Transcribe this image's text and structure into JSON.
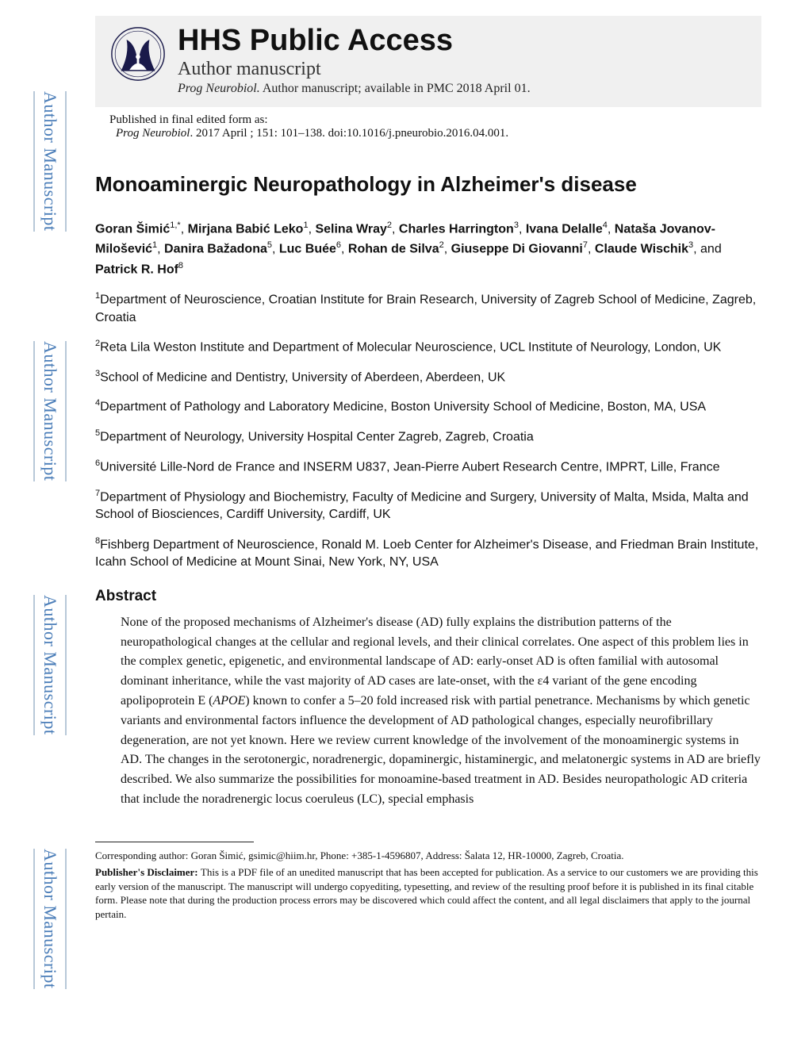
{
  "watermark_text": "Author Manuscript",
  "header": {
    "title": "HHS Public Access",
    "subtitle": "Author manuscript",
    "journal_italic": "Prog Neurobiol.",
    "journal_rest": " Author manuscript; available in PMC 2018 April 01."
  },
  "pub": {
    "line1": "Published in final edited form as:",
    "line2_italic": "Prog Neurobiol",
    "line2_rest": ". 2017 April ; 151: 101–138. doi:10.1016/j.pneurobio.2016.04.001."
  },
  "article_title": "Monoaminergic Neuropathology in Alzheimer's disease",
  "authors_html_parts": [
    {
      "bold": true,
      "text": "Goran Šimić"
    },
    {
      "sup": "1,*"
    },
    {
      "text": ", "
    },
    {
      "bold": true,
      "text": "Mirjana Babić Leko"
    },
    {
      "sup": "1"
    },
    {
      "text": ", "
    },
    {
      "bold": true,
      "text": "Selina Wray"
    },
    {
      "sup": "2"
    },
    {
      "text": ", "
    },
    {
      "bold": true,
      "text": "Charles Harrington"
    },
    {
      "sup": "3"
    },
    {
      "text": ", "
    },
    {
      "bold": true,
      "text": "Ivana Delalle"
    },
    {
      "sup": "4"
    },
    {
      "text": ", "
    },
    {
      "bold": true,
      "text": "Nataša Jovanov-Milošević"
    },
    {
      "sup": "1"
    },
    {
      "text": ", "
    },
    {
      "bold": true,
      "text": "Danira Bažadona"
    },
    {
      "sup": "5"
    },
    {
      "text": ", "
    },
    {
      "bold": true,
      "text": "Luc Buée"
    },
    {
      "sup": "6"
    },
    {
      "text": ", "
    },
    {
      "bold": true,
      "text": "Rohan de Silva"
    },
    {
      "sup": "2"
    },
    {
      "text": ", "
    },
    {
      "bold": true,
      "text": "Giuseppe Di Giovanni"
    },
    {
      "sup": "7"
    },
    {
      "text": ", "
    },
    {
      "bold": true,
      "text": "Claude Wischik"
    },
    {
      "sup": "3"
    },
    {
      "text": ", and "
    },
    {
      "bold": true,
      "text": "Patrick R. Hof"
    },
    {
      "sup": "8"
    }
  ],
  "affiliations": [
    {
      "num": "1",
      "text": "Department of Neuroscience, Croatian Institute for Brain Research, University of Zagreb School of Medicine, Zagreb, Croatia"
    },
    {
      "num": "2",
      "text": "Reta Lila Weston Institute and Department of Molecular Neuroscience, UCL Institute of Neurology, London, UK"
    },
    {
      "num": "3",
      "text": "School of Medicine and Dentistry, University of Aberdeen, Aberdeen, UK"
    },
    {
      "num": "4",
      "text": "Department of Pathology and Laboratory Medicine, Boston University School of Medicine, Boston, MA, USA"
    },
    {
      "num": "5",
      "text": "Department of Neurology, University Hospital Center Zagreb, Zagreb, Croatia"
    },
    {
      "num": "6",
      "text": "Université Lille-Nord de France and INSERM U837, Jean-Pierre Aubert Research Centre, IMPRT, Lille, France"
    },
    {
      "num": "7",
      "text": "Department of Physiology and Biochemistry, Faculty of Medicine and Surgery, University of Malta, Msida, Malta and School of Biosciences, Cardiff University, Cardiff, UK"
    },
    {
      "num": "8",
      "text": "Fishberg Department of Neuroscience, Ronald M. Loeb Center for Alzheimer's Disease, and Friedman Brain Institute, Icahn School of Medicine at Mount Sinai, New York, NY, USA"
    }
  ],
  "abstract_heading": "Abstract",
  "abstract_pre": "None of the proposed mechanisms of Alzheimer's disease (AD) fully explains the distribution patterns of the neuropathological changes at the cellular and regional levels, and their clinical correlates. One aspect of this problem lies in the complex genetic, epigenetic, and environmental landscape of AD: early-onset AD is often familial with autosomal dominant inheritance, while the vast majority of AD cases are late-onset, with the ε4 variant of the gene encoding apolipoprotein E (",
  "abstract_italic": "APOE",
  "abstract_post": ") known to confer a 5–20 fold increased risk with partial penetrance. Mechanisms by which genetic variants and environmental factors influence the development of AD pathological changes, especially neurofibrillary degeneration, are not yet known. Here we review current knowledge of the involvement of the monoaminergic systems in AD. The changes in the serotonergic, noradrenergic, dopaminergic, histaminergic, and melatonergic systems in AD are briefly described. We also summarize the possibilities for monoamine-based treatment in AD. Besides neuropathologic AD criteria that include the noradrenergic locus coeruleus (LC), special emphasis",
  "footer": {
    "corresponding": "Corresponding author: Goran Šimić, gsimic@hiim.hr, Phone: +385-1-4596807, Address: Šalata 12, HR-10000, Zagreb, Croatia.",
    "disclaimer_label": "Publisher's Disclaimer: ",
    "disclaimer_text": "This is a PDF file of an unedited manuscript that has been accepted for publication. As a service to our customers we are providing this early version of the manuscript. The manuscript will undergo copyediting, typesetting, and review of the resulting proof before it is published in its final citable form. Please note that during the production process errors may be discovered which could affect the content, and all legal disclaimers that apply to the journal pertain."
  },
  "colors": {
    "watermark": "#4a7db8",
    "header_bg": "#f0f0f0",
    "text": "#111111",
    "logo_outline": "#1a1a4a"
  }
}
